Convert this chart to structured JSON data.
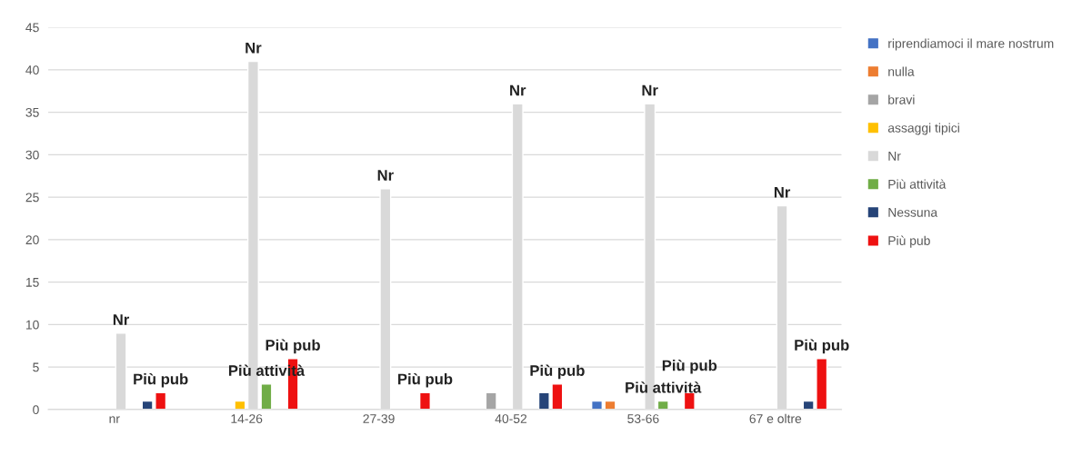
{
  "chart_data": {
    "type": "bar",
    "categories": [
      "nr",
      "14-26",
      "27-39",
      "40-52",
      "53-66",
      "67 e oltre"
    ],
    "series": [
      {
        "name": "riprendiamoci il mare nostrum",
        "color": "#4472c4",
        "values": [
          null,
          null,
          null,
          null,
          1,
          null
        ]
      },
      {
        "name": "nulla",
        "color": "#ed7d31",
        "values": [
          null,
          null,
          null,
          null,
          1,
          null
        ]
      },
      {
        "name": "bravi",
        "color": "#a5a5a5",
        "values": [
          null,
          null,
          null,
          2,
          null,
          null
        ]
      },
      {
        "name": "assaggi tipici",
        "color": "#ffc000",
        "values": [
          null,
          1,
          null,
          null,
          null,
          null
        ]
      },
      {
        "name": "Nr",
        "color": "#d9d9d9",
        "values": [
          9,
          41,
          26,
          36,
          36,
          24
        ]
      },
      {
        "name": "Più attività",
        "color": "#70ad47",
        "values": [
          null,
          3,
          null,
          null,
          1,
          null
        ]
      },
      {
        "name": "Nessuna",
        "color": "#264478",
        "values": [
          1,
          null,
          null,
          2,
          null,
          1
        ]
      },
      {
        "name": "Più pub",
        "color": "#ee1111",
        "values": [
          2,
          6,
          2,
          3,
          2,
          6
        ]
      }
    ],
    "annotations": [
      {
        "text": "Nr",
        "x": "nr",
        "y": 9
      },
      {
        "text": "Più pub",
        "x": "nr",
        "y": 2
      },
      {
        "text": "Nr",
        "x": "14-26",
        "y": 41
      },
      {
        "text": "Più attività",
        "x": "14-26",
        "y": 3
      },
      {
        "text": "Più pub",
        "x": "14-26",
        "y": 6
      },
      {
        "text": "Nr",
        "x": "27-39",
        "y": 26
      },
      {
        "text": "Più pub",
        "x": "27-39",
        "y": 2
      },
      {
        "text": "Nr",
        "x": "40-52",
        "y": 36
      },
      {
        "text": "Più pub",
        "x": "40-52",
        "y": 3
      },
      {
        "text": "Nr",
        "x": "53-66",
        "y": 36
      },
      {
        "text": "Più attività",
        "x": "53-66",
        "y": 1
      },
      {
        "text": "Più pub",
        "x": "53-66",
        "y": 2
      },
      {
        "text": "Nr",
        "x": "67 e oltre",
        "y": 24
      },
      {
        "text": "Più pub",
        "x": "67 e oltre",
        "y": 6
      }
    ],
    "ylim": [
      0,
      45
    ],
    "yticks": [
      0,
      5,
      10,
      15,
      20,
      25,
      30,
      35,
      40,
      45
    ],
    "grid": "y",
    "legend": "right"
  }
}
